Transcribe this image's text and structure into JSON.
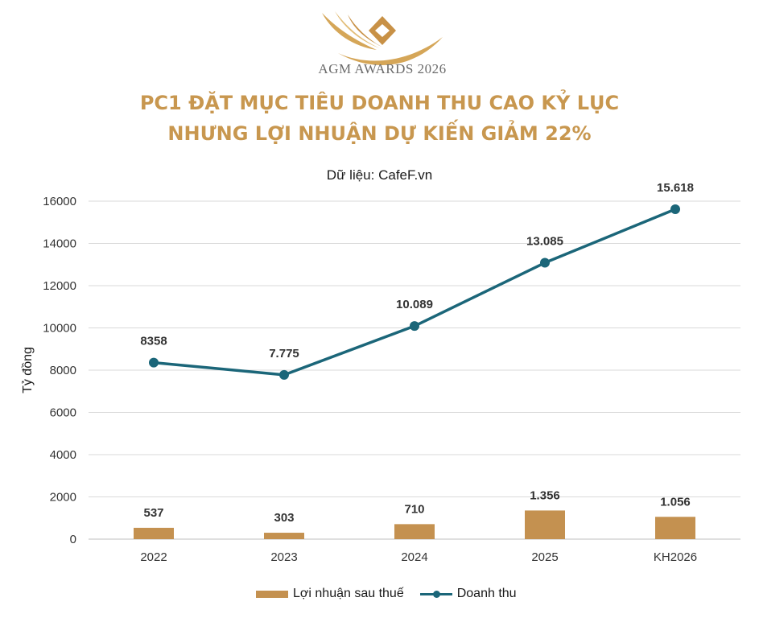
{
  "header": {
    "logo_text": "AGM AWARDS 2026",
    "title_line1": "PC1 ĐẶT  MỤC TIÊU DOANH THU CAO KỶ LỤC",
    "title_line2": "NHƯNG LỢI NHUẬN DỰ KIẾN GIẢM 22%",
    "subtitle": "Dữ liệu: CafeF.vn"
  },
  "colors": {
    "title": "#c8974f",
    "bar": "#c49150",
    "line": "#1b6679"
  },
  "chart_data": {
    "type": "bar",
    "categories": [
      "2022",
      "2023",
      "2024",
      "2025",
      "KH2026"
    ],
    "ylabel": "Tỷ đồng",
    "xlabel": "",
    "ylim": [
      0,
      16000
    ],
    "yticks": [
      0,
      2000,
      4000,
      6000,
      8000,
      10000,
      12000,
      14000,
      16000
    ],
    "ytick_labels": [
      "0",
      "2000",
      "4000",
      "6000",
      "8000",
      "10000",
      "12000",
      "14000",
      "16000"
    ],
    "grid": true,
    "legend_position": "bottom",
    "series": [
      {
        "name": "Lợi nhuận sau thuế",
        "type": "bar",
        "values": [
          537,
          303,
          710,
          1356,
          1056
        ],
        "labels": [
          "537",
          "303",
          "710",
          "1.356",
          "1.056"
        ]
      },
      {
        "name": "Doanh thu",
        "type": "line",
        "values": [
          8358,
          7775,
          10089,
          13085,
          15618
        ],
        "labels": [
          "8358",
          "7.775",
          "10.089",
          "13.085",
          "15.618"
        ]
      }
    ]
  }
}
